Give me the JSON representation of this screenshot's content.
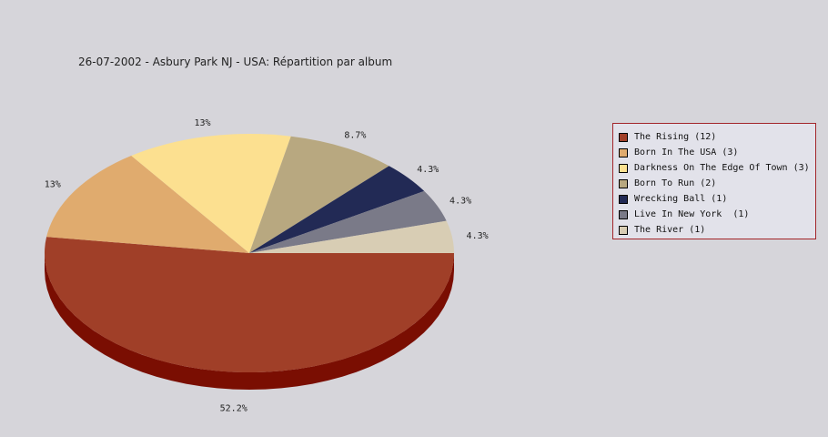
{
  "chart_data": {
    "type": "pie",
    "title": "26-07-2002 - Asbury Park NJ - USA:  Répartition par album",
    "slices": [
      {
        "label": "The Rising (12)",
        "value": 12,
        "pct_label": "52.2%",
        "color": "#a03f28",
        "side_color": "#7a0e02"
      },
      {
        "label": "Born In The USA (3)",
        "value": 3,
        "pct_label": "13%",
        "color": "#e0ab6e",
        "side_color": "#b8874f"
      },
      {
        "label": "Darkness On The Edge Of Town (3)",
        "value": 3,
        "pct_label": "13%",
        "color": "#fce090",
        "side_color": "#cfb56c"
      },
      {
        "label": "Born To Run (2)",
        "value": 2,
        "pct_label": "8.7%",
        "color": "#b8a880",
        "side_color": "#948560"
      },
      {
        "label": "Wrecking Ball (1)",
        "value": 1,
        "pct_label": "4.3%",
        "color": "#222a55",
        "side_color": "#151a38"
      },
      {
        "label": "Live In New York  (1)",
        "value": 1,
        "pct_label": "4.3%",
        "color": "#7a7a88",
        "side_color": "#5a5a66"
      },
      {
        "label": "The River (1)",
        "value": 1,
        "pct_label": "4.3%",
        "color": "#d8cdb4",
        "side_color": "#b3a88f"
      }
    ],
    "legend_position": "right"
  }
}
